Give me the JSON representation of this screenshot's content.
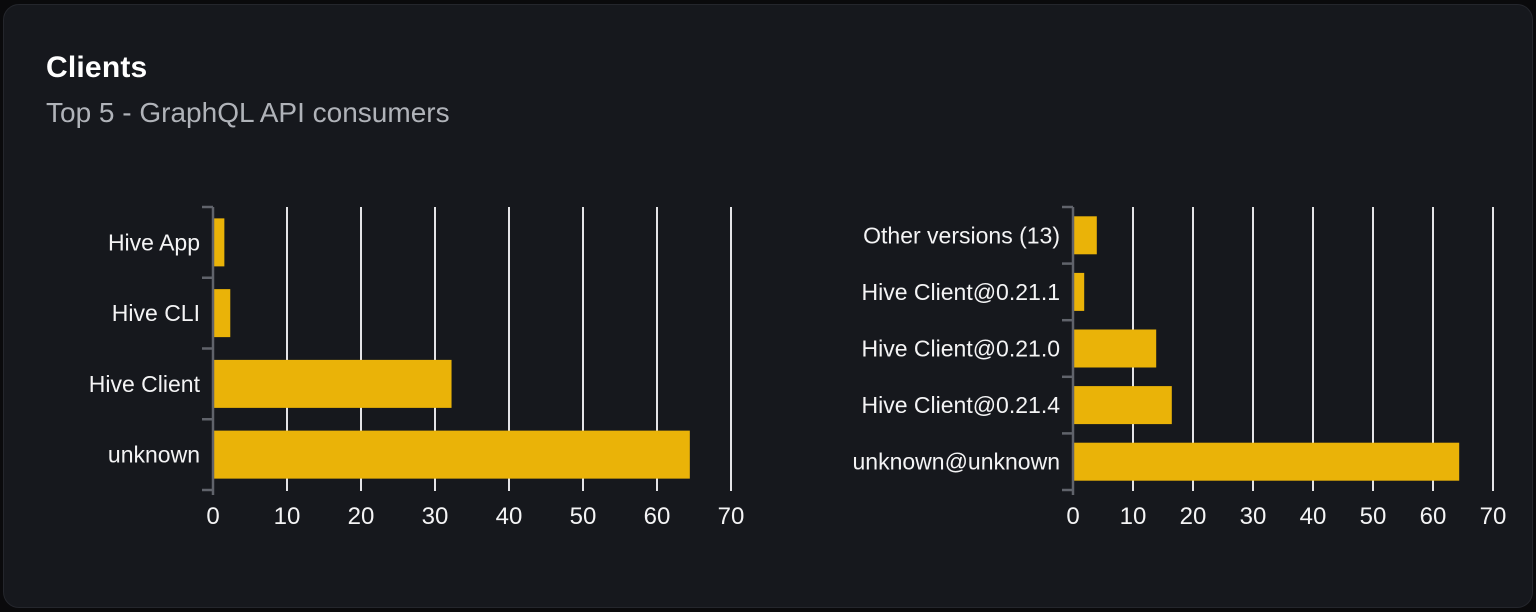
{
  "card": {
    "title": "Clients",
    "subtitle": "Top 5 - GraphQL API consumers"
  },
  "colors": {
    "page_bg": "#0a0a0c",
    "card_bg": "#16181d",
    "bar": "#eab308",
    "gridline": "#e4e4e7",
    "axis": "#60636b",
    "category_label": "#f4f4f5",
    "tick_label": "#f4f4f5",
    "title": "#ffffff",
    "subtitle": "#b0b3b9"
  },
  "chart_data": [
    {
      "type": "bar",
      "orientation": "horizontal",
      "name": "clients",
      "categories": [
        "Hive App",
        "Hive CLI",
        "Hive Client",
        "unknown"
      ],
      "values": [
        1.4,
        2.2,
        32.1,
        64.3
      ],
      "xlim": [
        0,
        70
      ],
      "xticks": [
        0,
        10,
        20,
        30,
        40,
        50,
        60,
        70
      ],
      "grid": true,
      "legend": false,
      "title": "",
      "xlabel": "",
      "ylabel": ""
    },
    {
      "type": "bar",
      "orientation": "horizontal",
      "name": "client-versions",
      "categories": [
        "Other versions (13)",
        "Hive Client@0.21.1",
        "Hive Client@0.21.0",
        "Hive Client@0.21.4",
        "unknown@unknown"
      ],
      "values": [
        3.8,
        1.7,
        13.7,
        16.3,
        64.2
      ],
      "xlim": [
        0,
        70
      ],
      "xticks": [
        0,
        10,
        20,
        30,
        40,
        50,
        60,
        70
      ],
      "grid": true,
      "legend": false,
      "title": "",
      "xlabel": "",
      "ylabel": ""
    }
  ]
}
